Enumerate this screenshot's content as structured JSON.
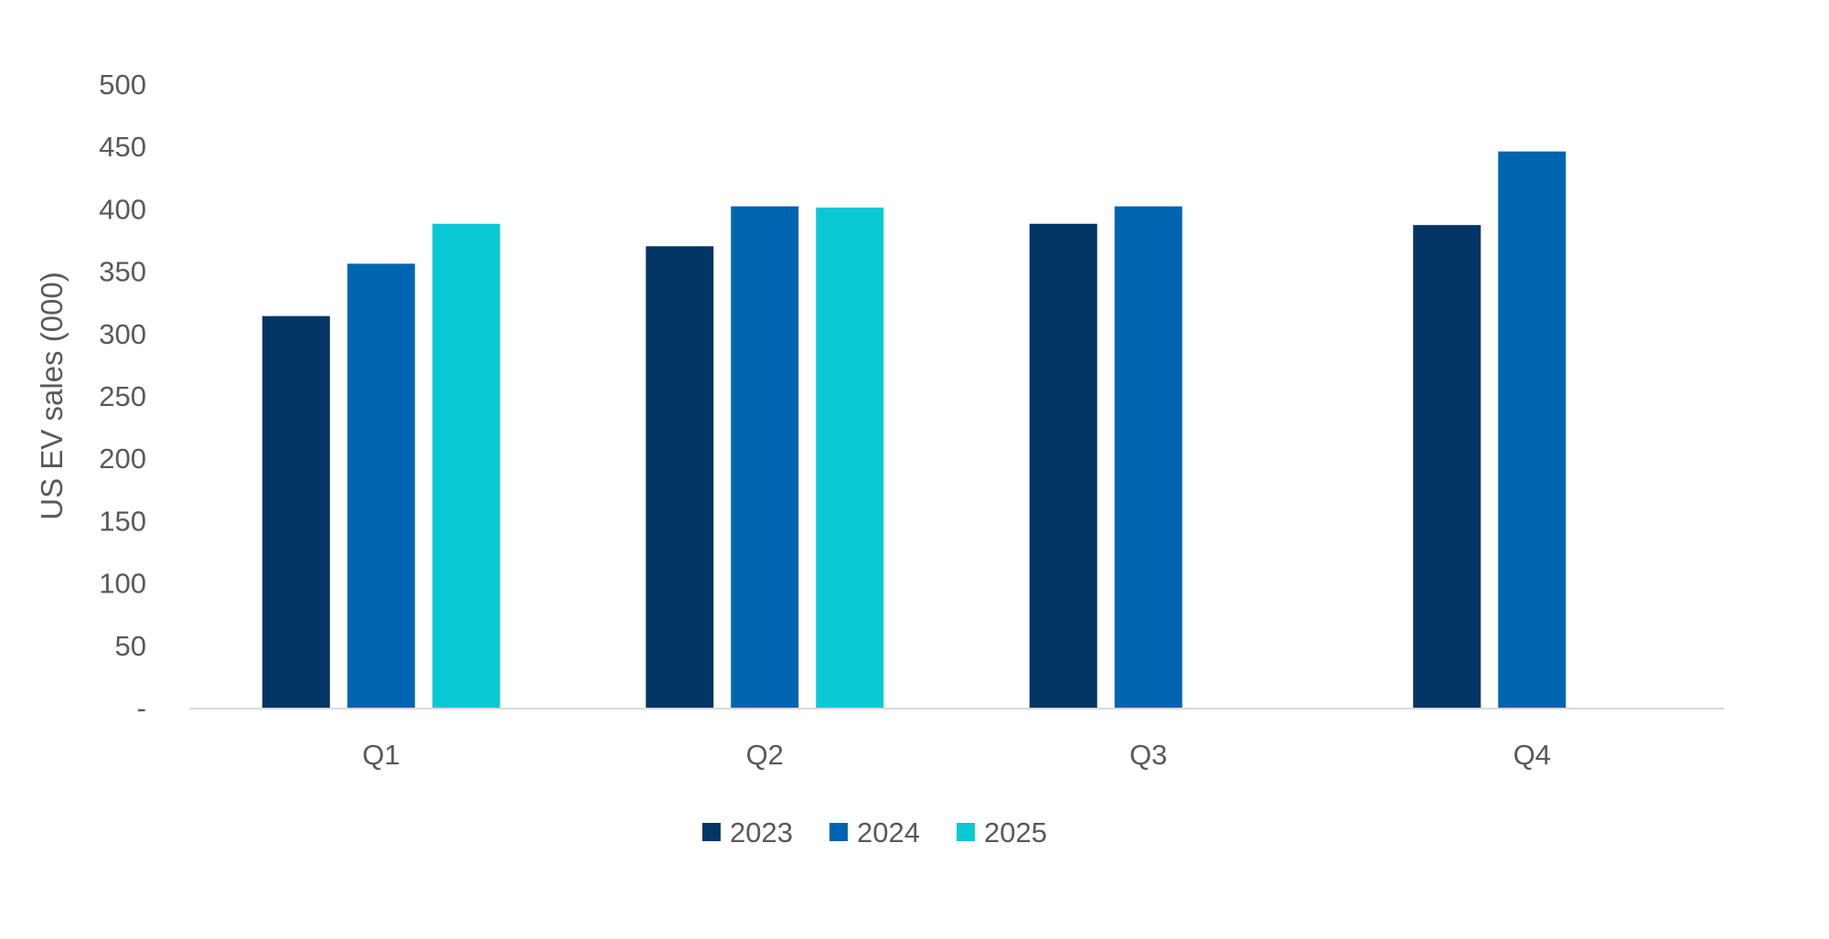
{
  "chart_data": {
    "type": "bar",
    "title": "",
    "xlabel": "",
    "ylabel": "US EV sales (000)",
    "ylim": [
      0,
      500
    ],
    "yticks": [
      0,
      50,
      100,
      150,
      200,
      250,
      300,
      350,
      400,
      450,
      500
    ],
    "ytick_labels": [
      "-",
      "50",
      "100",
      "150",
      "200",
      "250",
      "300",
      "350",
      "400",
      "450",
      "500"
    ],
    "grid": false,
    "legend": "bottom",
    "categories": [
      "Q1",
      "Q2",
      "Q3",
      "Q4"
    ],
    "series": [
      {
        "name": "2023",
        "color": "#033565",
        "values": [
          314,
          370,
          388,
          387
        ]
      },
      {
        "name": "2024",
        "color": "#0065B0",
        "values": [
          356,
          402,
          402,
          446
        ]
      },
      {
        "name": "2025",
        "color": "#0BC9D4",
        "values": [
          388,
          401,
          null,
          null
        ]
      }
    ]
  }
}
